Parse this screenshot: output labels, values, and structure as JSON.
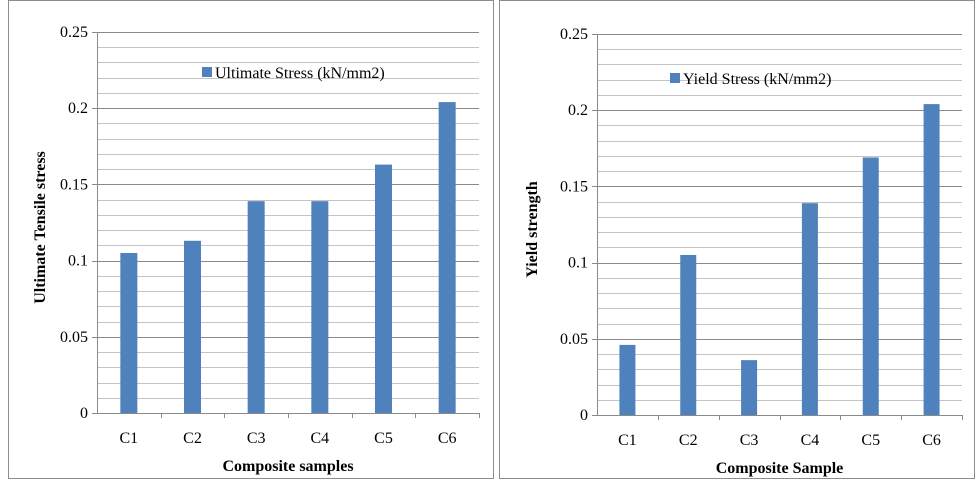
{
  "chart_data": [
    {
      "type": "bar",
      "title": "",
      "categories": [
        "C1",
        "C2",
        "C3",
        "C4",
        "C5",
        "C6"
      ],
      "series": [
        {
          "name": "Ultimate Stress (kN/mm2)",
          "values": [
            0.105,
            0.113,
            0.139,
            0.139,
            0.163,
            0.204
          ]
        }
      ],
      "xlabel": "Composite samples",
      "ylabel": "Ultimate Tensile stress",
      "ylim": [
        0,
        0.25
      ],
      "yticks": [
        "0",
        "0.05",
        "0.1",
        "0.15",
        "0.2",
        "0.25"
      ],
      "grid": true,
      "legend": "top-center",
      "bar_color": "#4f81bd"
    },
    {
      "type": "bar",
      "title": "",
      "categories": [
        "C1",
        "C2",
        "C3",
        "C4",
        "C5",
        "C6"
      ],
      "series": [
        {
          "name": "Yield Stress (kN/mm2)",
          "values": [
            0.046,
            0.105,
            0.036,
            0.139,
            0.169,
            0.204
          ]
        }
      ],
      "xlabel": "Composite Sample",
      "ylabel": "Yield strength",
      "ylim": [
        0,
        0.25
      ],
      "yticks": [
        "0",
        "0.05",
        "0.1",
        "0.15",
        "0.2",
        "0.25"
      ],
      "grid": true,
      "legend": "top-center",
      "bar_color": "#4f81bd"
    }
  ]
}
